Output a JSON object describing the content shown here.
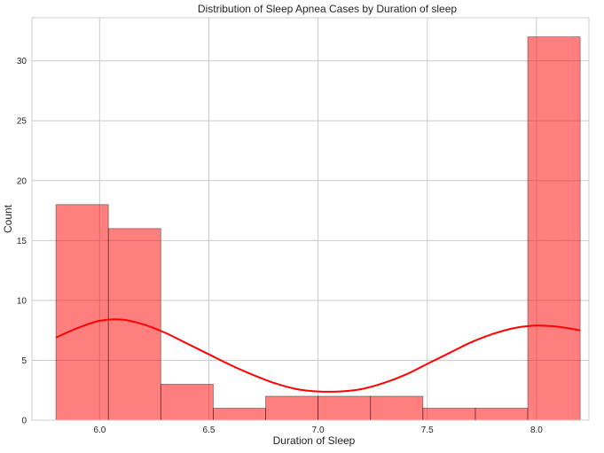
{
  "chart_data": {
    "type": "bar",
    "title": "Distribution of Sleep Apnea Cases by Duration of sleep",
    "xlabel": "Duration of Sleep",
    "ylabel": "Count",
    "xlim": [
      5.69,
      8.24
    ],
    "ylim": [
      0,
      33.6
    ],
    "x_ticks": [
      6.0,
      6.5,
      7.0,
      7.5,
      8.0
    ],
    "x_tick_labels": [
      "6.0",
      "6.5",
      "7.0",
      "7.5",
      "8.0"
    ],
    "y_ticks": [
      0,
      5,
      10,
      15,
      20,
      25,
      30
    ],
    "y_tick_labels": [
      "0",
      "5",
      "10",
      "15",
      "20",
      "25",
      "30"
    ],
    "grid": true,
    "bins": [
      {
        "x0": 5.8,
        "x1": 6.04,
        "count": 18
      },
      {
        "x0": 6.04,
        "x1": 6.28,
        "count": 16
      },
      {
        "x0": 6.28,
        "x1": 6.52,
        "count": 3
      },
      {
        "x0": 6.52,
        "x1": 6.76,
        "count": 1
      },
      {
        "x0": 6.76,
        "x1": 7.0,
        "count": 2
      },
      {
        "x0": 7.0,
        "x1": 7.24,
        "count": 2
      },
      {
        "x0": 7.24,
        "x1": 7.48,
        "count": 2
      },
      {
        "x0": 7.48,
        "x1": 7.72,
        "count": 1
      },
      {
        "x0": 7.72,
        "x1": 7.96,
        "count": 1
      },
      {
        "x0": 7.96,
        "x1": 8.2,
        "count": 32
      }
    ],
    "kde": {
      "x": [
        5.8,
        5.9,
        6.0,
        6.1,
        6.2,
        6.3,
        6.4,
        6.5,
        6.6,
        6.7,
        6.8,
        6.9,
        7.0,
        7.1,
        7.2,
        7.3,
        7.4,
        7.5,
        7.6,
        7.7,
        7.8,
        7.9,
        8.0,
        8.1,
        8.2
      ],
      "y": [
        6.9,
        7.7,
        8.3,
        8.4,
        8.0,
        7.3,
        6.4,
        5.5,
        4.6,
        3.8,
        3.1,
        2.6,
        2.4,
        2.4,
        2.6,
        3.1,
        3.8,
        4.7,
        5.6,
        6.5,
        7.2,
        7.7,
        7.9,
        7.8,
        7.5
      ]
    },
    "colors": {
      "bar_fill": "#ff0000",
      "bar_fill_opacity": 0.5,
      "bar_edge": "#000000",
      "kde_line": "#ff0000",
      "grid": "#cccccc",
      "axes_edge": "#cccccc",
      "background": "#ffffff"
    }
  }
}
